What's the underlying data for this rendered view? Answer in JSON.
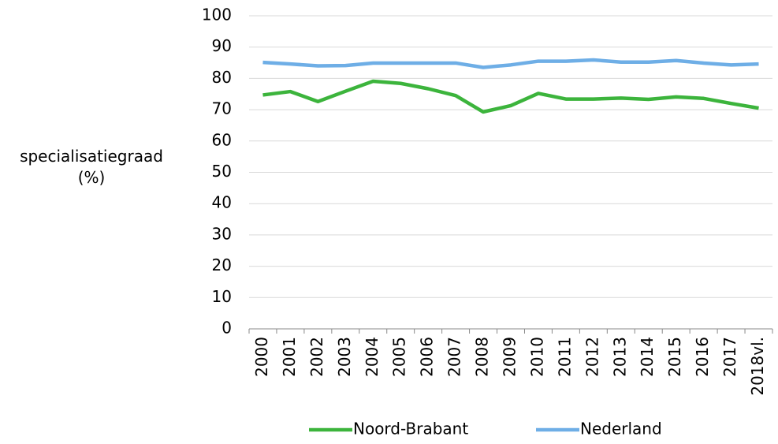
{
  "chart_data": {
    "type": "line",
    "ylabel": "specialisatiegraad (%)",
    "categories": [
      "2000",
      "2001",
      "2002",
      "2003",
      "2004",
      "2005",
      "2006",
      "2007",
      "2008",
      "2009",
      "2010",
      "2011",
      "2012",
      "2013",
      "2014",
      "2015",
      "2016",
      "2017",
      "2018vl."
    ],
    "series": [
      {
        "name": "Noord-Brabant",
        "color": "#3cb43c",
        "values": [
          74.7,
          75.8,
          72.6,
          75.9,
          79.1,
          78.4,
          76.7,
          74.5,
          69.3,
          71.3,
          75.2,
          73.4,
          73.4,
          73.7,
          73.3,
          74.1,
          73.6,
          72.0,
          70.5
        ]
      },
      {
        "name": "Nederland",
        "color": "#6eaee6",
        "values": [
          85.1,
          84.6,
          84.0,
          84.1,
          84.9,
          84.9,
          84.9,
          84.9,
          83.5,
          84.3,
          85.5,
          85.5,
          85.9,
          85.2,
          85.2,
          85.7,
          84.9,
          84.3,
          84.6
        ]
      }
    ],
    "ylim": [
      0,
      100
    ],
    "yticks": [
      0,
      10,
      20,
      30,
      40,
      50,
      60,
      70,
      80,
      90,
      100
    ],
    "grid": true
  }
}
